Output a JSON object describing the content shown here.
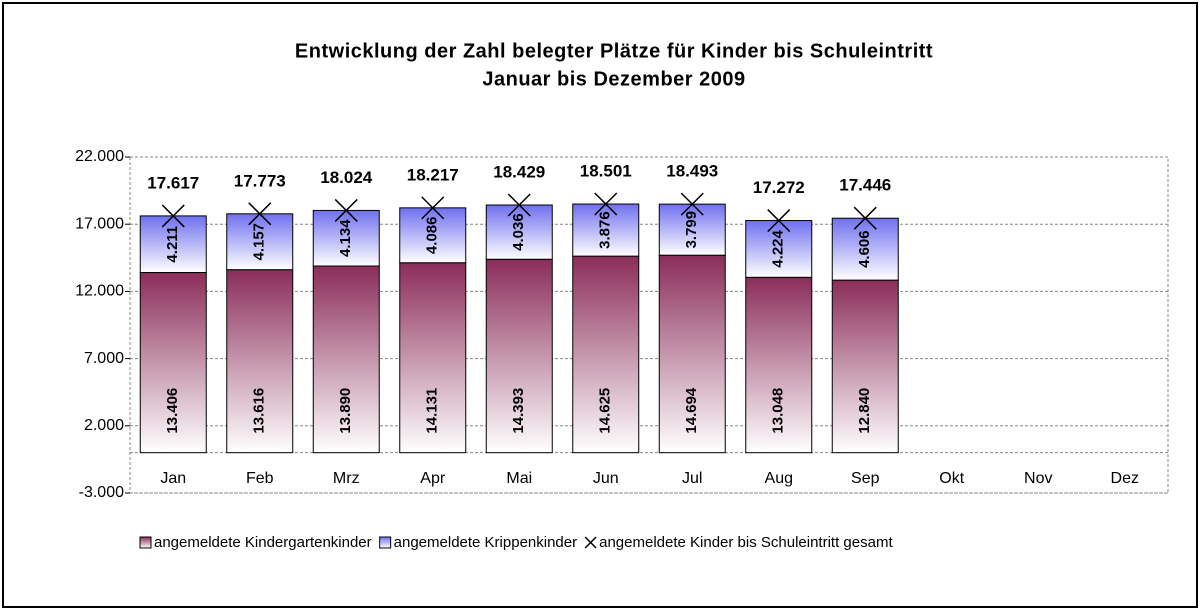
{
  "chart_data": {
    "type": "bar",
    "stacked": true,
    "title": "Entwicklung der Zahl belegter Plätze für Kinder bis Schuleintritt",
    "subtitle": "Januar bis Dezember 2009",
    "categories": [
      "Jan",
      "Feb",
      "Mrz",
      "Apr",
      "Mai",
      "Jun",
      "Jul",
      "Aug",
      "Sep",
      "Okt",
      "Nov",
      "Dez"
    ],
    "series": [
      {
        "name": "angemeldete Kindergartenkinder",
        "color": "#8b2d5a",
        "type": "bar",
        "values": [
          13406,
          13616,
          13890,
          14131,
          14393,
          14625,
          14694,
          13048,
          12840,
          null,
          null,
          null
        ],
        "value_labels": [
          "13.406",
          "13.616",
          "13.890",
          "14.131",
          "14.393",
          "14.625",
          "14.694",
          "13.048",
          "12.840",
          null,
          null,
          null
        ]
      },
      {
        "name": "angemeldete Krippenkinder",
        "color": "#7070f0",
        "type": "bar",
        "values": [
          4211,
          4157,
          4134,
          4086,
          4036,
          3876,
          3799,
          4224,
          4606,
          null,
          null,
          null
        ],
        "value_labels": [
          "4.211",
          "4.157",
          "4.134",
          "4.086",
          "4.036",
          "3.876",
          "3.799",
          "4.224",
          "4.606",
          null,
          null,
          null
        ]
      },
      {
        "name": "angemeldete Kinder bis Schuleintritt gesamt",
        "color": "#000000",
        "type": "marker",
        "values": [
          17617,
          17773,
          18024,
          18217,
          18429,
          18501,
          18493,
          17272,
          17446,
          null,
          null,
          null
        ],
        "value_labels": [
          "17.617",
          "17.773",
          "18.024",
          "18.217",
          "18.429",
          "18.501",
          "18.493",
          "17.272",
          "17.446",
          null,
          null,
          null
        ]
      }
    ],
    "ylim": [
      -3000,
      22000
    ],
    "yticks": [
      {
        "value": -3000,
        "label": "-3.000"
      },
      {
        "value": 2000,
        "label": "2.000"
      },
      {
        "value": 7000,
        "label": "7.000"
      },
      {
        "value": 12000,
        "label": "12.000"
      },
      {
        "value": 17000,
        "label": "17.000"
      },
      {
        "value": 22000,
        "label": "22.000"
      }
    ],
    "grid": true,
    "legend": "bottom"
  }
}
